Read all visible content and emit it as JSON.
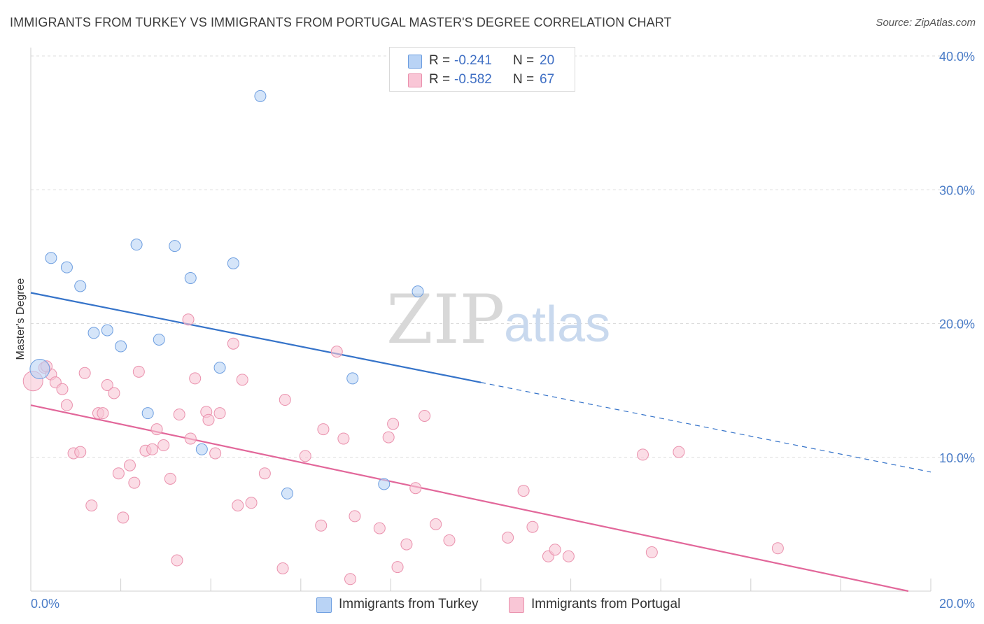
{
  "title": "IMMIGRANTS FROM TURKEY VS IMMIGRANTS FROM PORTUGAL MASTER'S DEGREE CORRELATION CHART",
  "source": "Source: ZipAtlas.com",
  "watermark": {
    "zip": "ZIP",
    "atlas": "atlas"
  },
  "colors": {
    "turkey_fill": "#b9d3f5",
    "turkey_stroke": "#6d9ee0",
    "turkey_line": "#3573c9",
    "portugal_fill": "#f9c6d6",
    "portugal_stroke": "#ea91ad",
    "portugal_line": "#e2679a",
    "tick_text": "#4a7cc7",
    "grid": "#dcdcdc"
  },
  "stats_legend": {
    "rows": [
      {
        "r_label": "R =",
        "r_value": "-0.241",
        "n_label": "N =",
        "n_value": "20"
      },
      {
        "r_label": "R =",
        "r_value": "-0.582",
        "n_label": "N =",
        "n_value": "67"
      }
    ]
  },
  "legend": [
    "Immigrants from Turkey",
    "Immigrants from Portugal"
  ],
  "chart_data": {
    "type": "scatter",
    "title": "IMMIGRANTS FROM TURKEY VS IMMIGRANTS FROM PORTUGAL MASTER'S DEGREE CORRELATION CHART",
    "xlabel": "",
    "ylabel": "Master's Degree",
    "xlim": [
      0,
      20
    ],
    "ylim": [
      0,
      40
    ],
    "x_tick_labels": [
      "0.0%",
      "20.0%"
    ],
    "y_ticks": [
      10,
      20,
      30,
      40
    ],
    "y_tick_labels": [
      "10.0%",
      "20.0%",
      "30.0%",
      "40.0%"
    ],
    "grid": true,
    "legend_position": "bottom",
    "series": [
      {
        "name": "Immigrants from Turkey",
        "points": [
          [
            0.2,
            16.6
          ],
          [
            0.45,
            24.9
          ],
          [
            0.8,
            24.2
          ],
          [
            1.1,
            22.8
          ],
          [
            1.4,
            19.3
          ],
          [
            1.7,
            19.5
          ],
          [
            2.0,
            18.3
          ],
          [
            2.35,
            25.9
          ],
          [
            2.6,
            13.3
          ],
          [
            2.85,
            18.8
          ],
          [
            3.2,
            25.8
          ],
          [
            3.55,
            23.4
          ],
          [
            3.8,
            10.6
          ],
          [
            4.2,
            16.7
          ],
          [
            4.5,
            24.5
          ],
          [
            5.1,
            37.0
          ],
          [
            5.7,
            7.3
          ],
          [
            7.15,
            15.9
          ],
          [
            7.85,
            8.0
          ],
          [
            8.6,
            22.4
          ]
        ],
        "trend": {
          "x": [
            0,
            10
          ],
          "y": [
            22.3,
            15.6
          ],
          "dashed_to": [
            20,
            8.9
          ]
        }
      },
      {
        "name": "Immigrants from Portugal",
        "points": [
          [
            0.05,
            15.7
          ],
          [
            0.3,
            16.7
          ],
          [
            0.45,
            16.2
          ],
          [
            0.55,
            15.6
          ],
          [
            0.7,
            15.1
          ],
          [
            0.8,
            13.9
          ],
          [
            0.95,
            10.3
          ],
          [
            1.1,
            10.4
          ],
          [
            1.2,
            16.3
          ],
          [
            1.35,
            6.4
          ],
          [
            1.5,
            13.3
          ],
          [
            1.6,
            13.3
          ],
          [
            1.7,
            15.4
          ],
          [
            1.85,
            14.8
          ],
          [
            1.95,
            8.8
          ],
          [
            2.05,
            5.5
          ],
          [
            2.2,
            9.4
          ],
          [
            2.3,
            8.1
          ],
          [
            2.4,
            16.4
          ],
          [
            2.55,
            10.5
          ],
          [
            2.7,
            10.6
          ],
          [
            2.8,
            12.1
          ],
          [
            2.95,
            10.9
          ],
          [
            3.1,
            8.4
          ],
          [
            3.25,
            2.3
          ],
          [
            3.3,
            13.2
          ],
          [
            3.5,
            20.3
          ],
          [
            3.55,
            11.4
          ],
          [
            3.65,
            15.9
          ],
          [
            3.9,
            13.4
          ],
          [
            3.95,
            12.8
          ],
          [
            4.1,
            10.3
          ],
          [
            4.2,
            13.3
          ],
          [
            4.5,
            18.5
          ],
          [
            4.6,
            6.4
          ],
          [
            4.7,
            15.8
          ],
          [
            4.9,
            6.6
          ],
          [
            5.2,
            8.8
          ],
          [
            5.6,
            1.7
          ],
          [
            5.65,
            14.3
          ],
          [
            6.1,
            10.1
          ],
          [
            6.45,
            4.9
          ],
          [
            6.5,
            12.1
          ],
          [
            6.8,
            17.9
          ],
          [
            6.95,
            11.4
          ],
          [
            7.1,
            0.9
          ],
          [
            7.2,
            5.6
          ],
          [
            7.75,
            4.7
          ],
          [
            7.95,
            11.5
          ],
          [
            8.05,
            12.5
          ],
          [
            8.15,
            1.8
          ],
          [
            8.35,
            3.5
          ],
          [
            8.55,
            7.7
          ],
          [
            8.75,
            13.1
          ],
          [
            9.0,
            5.0
          ],
          [
            9.3,
            3.8
          ],
          [
            10.6,
            4.0
          ],
          [
            10.95,
            7.5
          ],
          [
            11.15,
            4.8
          ],
          [
            11.5,
            2.6
          ],
          [
            11.65,
            3.1
          ],
          [
            11.95,
            2.6
          ],
          [
            13.6,
            10.2
          ],
          [
            13.8,
            2.9
          ],
          [
            14.4,
            10.4
          ],
          [
            16.6,
            3.2
          ],
          [
            0.35,
            16.8
          ]
        ],
        "trend": {
          "x": [
            0,
            19.5
          ],
          "y": [
            13.9,
            0
          ]
        }
      }
    ]
  }
}
